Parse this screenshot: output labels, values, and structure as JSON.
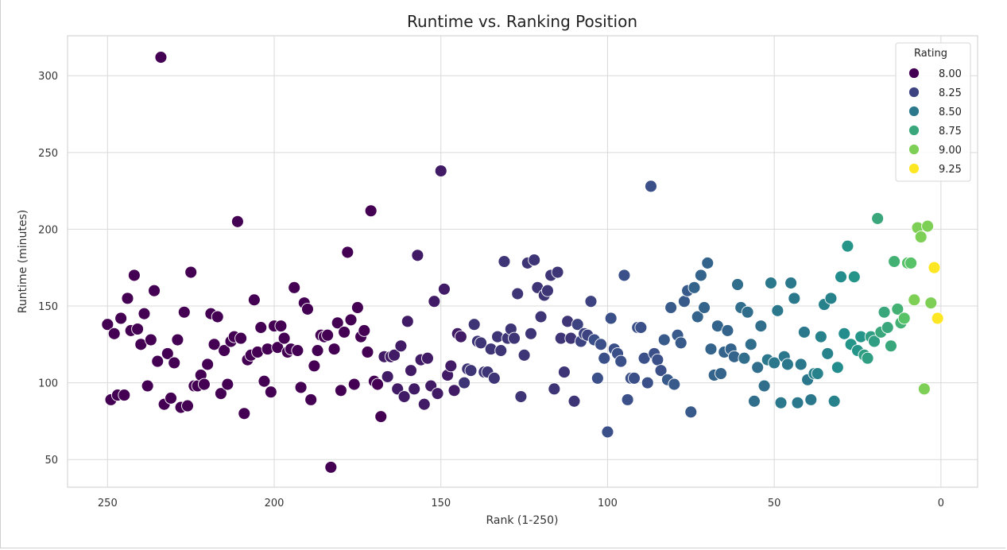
{
  "chart_data": {
    "type": "scatter",
    "title": "Runtime vs. Ranking Position",
    "xlabel": "Rank (1-250)",
    "ylabel": "Runtime (minutes)",
    "x_inverted": true,
    "xlim": [
      262,
      -11
    ],
    "ylim": [
      32,
      326
    ],
    "xticks": [
      250,
      200,
      150,
      100,
      50,
      0
    ],
    "yticks": [
      50,
      100,
      150,
      200,
      250,
      300
    ],
    "grid": true,
    "legend": {
      "title": "Rating",
      "placement": "top-right",
      "entries": [
        {
          "label": "8.00",
          "value": 8.0
        },
        {
          "label": "8.25",
          "value": 8.25
        },
        {
          "label": "8.50",
          "value": 8.5
        },
        {
          "label": "8.75",
          "value": 8.75
        },
        {
          "label": "9.00",
          "value": 9.0
        },
        {
          "label": "9.25",
          "value": 9.25
        }
      ]
    },
    "color_scale": {
      "name": "viridis",
      "min": 8.0,
      "max": 9.25,
      "stops": [
        "#440154",
        "#3b528b",
        "#21918c",
        "#5ec962",
        "#fde725"
      ]
    },
    "points": [
      [
        250,
        138,
        8.0
      ],
      [
        249,
        89,
        8.0
      ],
      [
        248,
        132,
        8.0
      ],
      [
        247,
        92,
        8.0
      ],
      [
        246,
        142,
        8.0
      ],
      [
        245,
        92,
        8.0
      ],
      [
        244,
        155,
        8.0
      ],
      [
        243,
        134,
        8.0
      ],
      [
        242,
        170,
        8.0
      ],
      [
        241,
        135,
        8.0
      ],
      [
        240,
        125,
        8.0
      ],
      [
        239,
        145,
        8.0
      ],
      [
        238,
        98,
        8.0
      ],
      [
        237,
        128,
        8.0
      ],
      [
        236,
        160,
        8.0
      ],
      [
        235,
        114,
        8.0
      ],
      [
        234,
        312,
        8.0
      ],
      [
        233,
        86,
        8.0
      ],
      [
        232,
        119,
        8.0
      ],
      [
        231,
        90,
        8.0
      ],
      [
        230,
        113,
        8.0
      ],
      [
        229,
        128,
        8.0
      ],
      [
        228,
        84,
        8.0
      ],
      [
        227,
        146,
        8.0
      ],
      [
        226,
        85,
        8.0
      ],
      [
        225,
        172,
        8.0
      ],
      [
        224,
        98,
        8.0
      ],
      [
        223,
        98,
        8.0
      ],
      [
        222,
        105,
        8.0
      ],
      [
        221,
        99,
        8.0
      ],
      [
        220,
        112,
        8.0
      ],
      [
        219,
        145,
        8.0
      ],
      [
        218,
        125,
        8.0
      ],
      [
        217,
        143,
        8.0
      ],
      [
        216,
        93,
        8.0
      ],
      [
        215,
        121,
        8.0
      ],
      [
        214,
        99,
        8.0
      ],
      [
        213,
        127,
        8.0
      ],
      [
        212,
        130,
        8.0
      ],
      [
        211,
        205,
        8.0
      ],
      [
        210,
        129,
        8.0
      ],
      [
        209,
        80,
        8.0
      ],
      [
        208,
        115,
        8.0
      ],
      [
        207,
        118,
        8.0
      ],
      [
        206,
        154,
        8.0
      ],
      [
        205,
        120,
        8.0
      ],
      [
        204,
        136,
        8.0
      ],
      [
        203,
        101,
        8.0
      ],
      [
        202,
        122,
        8.0
      ],
      [
        201,
        94,
        8.0
      ],
      [
        200,
        137,
        8.0
      ],
      [
        199,
        123,
        8.0
      ],
      [
        198,
        137,
        8.0
      ],
      [
        197,
        129,
        8.0
      ],
      [
        196,
        120,
        8.0
      ],
      [
        195,
        122,
        8.0
      ],
      [
        194,
        162,
        8.0
      ],
      [
        193,
        121,
        8.0
      ],
      [
        192,
        97,
        8.0
      ],
      [
        191,
        152,
        8.0
      ],
      [
        190,
        148,
        8.0
      ],
      [
        189,
        89,
        8.0
      ],
      [
        188,
        111,
        8.0
      ],
      [
        187,
        121,
        8.0
      ],
      [
        186,
        131,
        8.0
      ],
      [
        185,
        130,
        8.0
      ],
      [
        184,
        131,
        8.0
      ],
      [
        183,
        45,
        8.0
      ],
      [
        182,
        122,
        8.0
      ],
      [
        181,
        139,
        8.0
      ],
      [
        180,
        95,
        8.0
      ],
      [
        179,
        133,
        8.0
      ],
      [
        178,
        185,
        8.0
      ],
      [
        177,
        141,
        8.0
      ],
      [
        176,
        99,
        8.0
      ],
      [
        175,
        149,
        8.0
      ],
      [
        174,
        130,
        8.0
      ],
      [
        173,
        134,
        8.0
      ],
      [
        172,
        120,
        8.0
      ],
      [
        171,
        212,
        8.0
      ],
      [
        170,
        101,
        8.0
      ],
      [
        169,
        99,
        8.0
      ],
      [
        168,
        78,
        8.0
      ],
      [
        167,
        117,
        8.1
      ],
      [
        166,
        104,
        8.1
      ],
      [
        165,
        117,
        8.1
      ],
      [
        164,
        118,
        8.1
      ],
      [
        163,
        96,
        8.1
      ],
      [
        162,
        124,
        8.1
      ],
      [
        161,
        91,
        8.1
      ],
      [
        160,
        140,
        8.1
      ],
      [
        159,
        108,
        8.1
      ],
      [
        158,
        96,
        8.1
      ],
      [
        157,
        183,
        8.1
      ],
      [
        156,
        115,
        8.1
      ],
      [
        155,
        86,
        8.1
      ],
      [
        154,
        116,
        8.1
      ],
      [
        153,
        98,
        8.1
      ],
      [
        152,
        153,
        8.1
      ],
      [
        151,
        93,
        8.1
      ],
      [
        150,
        238,
        8.1
      ],
      [
        149,
        161,
        8.1
      ],
      [
        148,
        105,
        8.1
      ],
      [
        147,
        111,
        8.1
      ],
      [
        146,
        95,
        8.1
      ],
      [
        145,
        132,
        8.1
      ],
      [
        144,
        130,
        8.1
      ],
      [
        143,
        100,
        8.2
      ],
      [
        142,
        109,
        8.2
      ],
      [
        141,
        108,
        8.2
      ],
      [
        140,
        138,
        8.2
      ],
      [
        139,
        127,
        8.2
      ],
      [
        138,
        126,
        8.2
      ],
      [
        137,
        107,
        8.2
      ],
      [
        136,
        107,
        8.2
      ],
      [
        135,
        122,
        8.2
      ],
      [
        134,
        103,
        8.2
      ],
      [
        133,
        130,
        8.2
      ],
      [
        132,
        121,
        8.2
      ],
      [
        131,
        179,
        8.2
      ],
      [
        130,
        129,
        8.2
      ],
      [
        129,
        135,
        8.2
      ],
      [
        128,
        129,
        8.2
      ],
      [
        127,
        158,
        8.2
      ],
      [
        126,
        91,
        8.2
      ],
      [
        125,
        118,
        8.2
      ],
      [
        124,
        178,
        8.2
      ],
      [
        123,
        132,
        8.2
      ],
      [
        122,
        180,
        8.2
      ],
      [
        121,
        162,
        8.2
      ],
      [
        120,
        143,
        8.2
      ],
      [
        119,
        157,
        8.2
      ],
      [
        118,
        160,
        8.2
      ],
      [
        117,
        170,
        8.2
      ],
      [
        116,
        96,
        8.2
      ],
      [
        115,
        172,
        8.2
      ],
      [
        114,
        129,
        8.2
      ],
      [
        113,
        107,
        8.2
      ],
      [
        112,
        140,
        8.2
      ],
      [
        111,
        129,
        8.2
      ],
      [
        110,
        88,
        8.2
      ],
      [
        109,
        138,
        8.25
      ],
      [
        108,
        127,
        8.25
      ],
      [
        107,
        132,
        8.25
      ],
      [
        106,
        131,
        8.25
      ],
      [
        105,
        153,
        8.25
      ],
      [
        104,
        128,
        8.3
      ],
      [
        103,
        103,
        8.3
      ],
      [
        102,
        125,
        8.3
      ],
      [
        101,
        116,
        8.3
      ],
      [
        100,
        68,
        8.3
      ],
      [
        99,
        142,
        8.3
      ],
      [
        98,
        122,
        8.3
      ],
      [
        97,
        119,
        8.3
      ],
      [
        96,
        114,
        8.3
      ],
      [
        95,
        170,
        8.3
      ],
      [
        94,
        89,
        8.3
      ],
      [
        93,
        103,
        8.3
      ],
      [
        92,
        103,
        8.3
      ],
      [
        91,
        136,
        8.3
      ],
      [
        90,
        136,
        8.3
      ],
      [
        89,
        116,
        8.3
      ],
      [
        88,
        100,
        8.3
      ],
      [
        87,
        228,
        8.3
      ],
      [
        86,
        119,
        8.3
      ],
      [
        85,
        115,
        8.3
      ],
      [
        84,
        108,
        8.3
      ],
      [
        83,
        128,
        8.35
      ],
      [
        82,
        102,
        8.35
      ],
      [
        81,
        149,
        8.35
      ],
      [
        80,
        99,
        8.35
      ],
      [
        79,
        131,
        8.35
      ],
      [
        78,
        126,
        8.35
      ],
      [
        77,
        153,
        8.35
      ],
      [
        76,
        160,
        8.35
      ],
      [
        75,
        81,
        8.35
      ],
      [
        74,
        162,
        8.4
      ],
      [
        73,
        143,
        8.4
      ],
      [
        72,
        170,
        8.4
      ],
      [
        71,
        149,
        8.4
      ],
      [
        70,
        178,
        8.4
      ],
      [
        69,
        122,
        8.4
      ],
      [
        68,
        105,
        8.4
      ],
      [
        67,
        137,
        8.4
      ],
      [
        66,
        106,
        8.4
      ],
      [
        65,
        120,
        8.4
      ],
      [
        64,
        134,
        8.4
      ],
      [
        63,
        122,
        8.4
      ],
      [
        62,
        117,
        8.4
      ],
      [
        61,
        164,
        8.45
      ],
      [
        60,
        149,
        8.45
      ],
      [
        59,
        116,
        8.45
      ],
      [
        58,
        146,
        8.45
      ],
      [
        57,
        125,
        8.45
      ],
      [
        56,
        88,
        8.45
      ],
      [
        55,
        110,
        8.45
      ],
      [
        54,
        137,
        8.45
      ],
      [
        53,
        98,
        8.45
      ],
      [
        52,
        115,
        8.5
      ],
      [
        51,
        165,
        8.5
      ],
      [
        50,
        113,
        8.5
      ],
      [
        49,
        147,
        8.5
      ],
      [
        48,
        87,
        8.5
      ],
      [
        47,
        117,
        8.5
      ],
      [
        46,
        112,
        8.5
      ],
      [
        45,
        165,
        8.5
      ],
      [
        44,
        155,
        8.5
      ],
      [
        43,
        87,
        8.5
      ],
      [
        42,
        112,
        8.5
      ],
      [
        41,
        133,
        8.5
      ],
      [
        40,
        102,
        8.5
      ],
      [
        39,
        89,
        8.5
      ],
      [
        38,
        106,
        8.55
      ],
      [
        37,
        106,
        8.55
      ],
      [
        36,
        130,
        8.55
      ],
      [
        35,
        151,
        8.55
      ],
      [
        34,
        119,
        8.55
      ],
      [
        33,
        155,
        8.55
      ],
      [
        32,
        88,
        8.55
      ],
      [
        31,
        110,
        8.6
      ],
      [
        30,
        169,
        8.6
      ],
      [
        29,
        132,
        8.6
      ],
      [
        28,
        189,
        8.65
      ],
      [
        27,
        125,
        8.65
      ],
      [
        26,
        169,
        8.65
      ],
      [
        25,
        121,
        8.65
      ],
      [
        24,
        130,
        8.65
      ],
      [
        23,
        118,
        8.7
      ],
      [
        22,
        116,
        8.7
      ],
      [
        21,
        130,
        8.7
      ],
      [
        20,
        127,
        8.7
      ],
      [
        19,
        207,
        8.75
      ],
      [
        18,
        133,
        8.75
      ],
      [
        17,
        146,
        8.75
      ],
      [
        16,
        136,
        8.75
      ],
      [
        15,
        124,
        8.75
      ],
      [
        14,
        179,
        8.8
      ],
      [
        13,
        148,
        8.8
      ],
      [
        12,
        139,
        8.8
      ],
      [
        11,
        142,
        8.9
      ],
      [
        10,
        178,
        8.9
      ],
      [
        9,
        178,
        8.9
      ],
      [
        8,
        154,
        9.0
      ],
      [
        7,
        201,
        9.0
      ],
      [
        6,
        195,
        9.0
      ],
      [
        5,
        96,
        9.0
      ],
      [
        4,
        202,
        9.0
      ],
      [
        3,
        152,
        9.0
      ],
      [
        2,
        175,
        9.25
      ],
      [
        1,
        142,
        9.25
      ]
    ]
  }
}
